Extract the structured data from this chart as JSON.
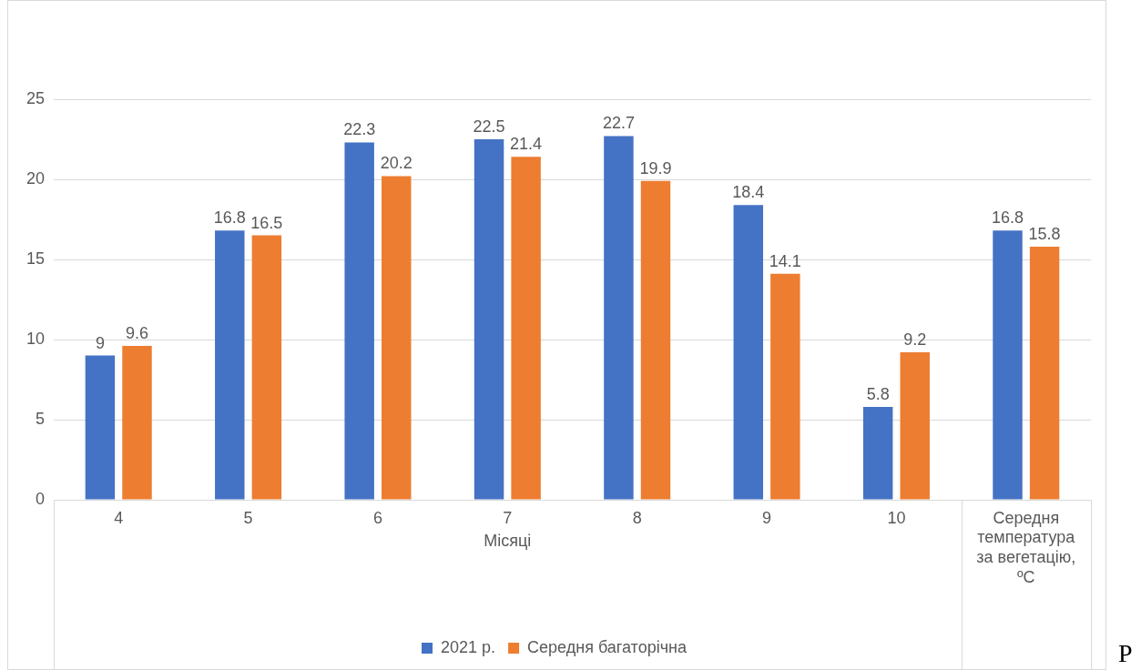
{
  "chart_data": {
    "type": "bar",
    "xlabel": "Місяці",
    "categories": [
      "4",
      "5",
      "6",
      "7",
      "8",
      "9",
      "10",
      "Середня температура за вегетацію, ºC"
    ],
    "series": [
      {
        "name": "2021 р.",
        "color": "#4472c4",
        "values": [
          9,
          16.8,
          22.3,
          22.5,
          22.7,
          18.4,
          5.8,
          16.8
        ]
      },
      {
        "name": "Середня багаторічна",
        "color": "#ed7d31",
        "values": [
          9.6,
          16.5,
          20.2,
          21.4,
          19.9,
          14.1,
          9.2,
          15.8
        ]
      }
    ],
    "ylim": [
      0,
      25
    ],
    "yticks": [
      0,
      5,
      10,
      15,
      20,
      25
    ],
    "grid": "y",
    "legend": "bottom",
    "data_labels": true,
    "annotations": [
      "Р"
    ]
  }
}
